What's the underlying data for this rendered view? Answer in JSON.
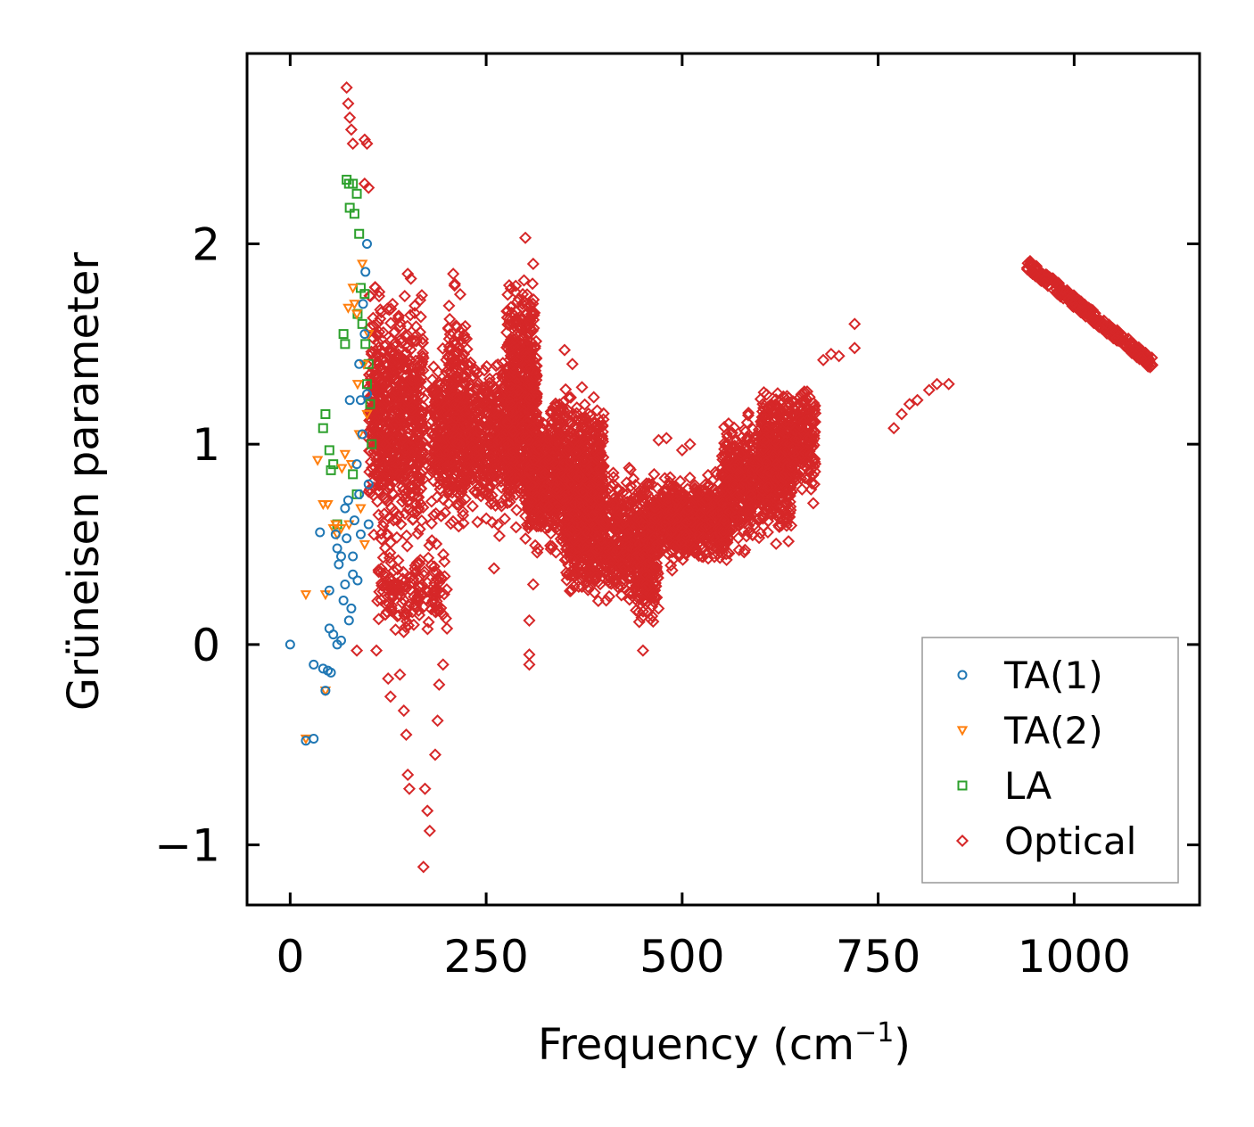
{
  "chart_data": {
    "type": "scatter",
    "title": "",
    "xlabel_main": "Frequency (cm",
    "xlabel_sup": "−1",
    "xlabel_end": ")",
    "ylabel": "Grüneisen parameter",
    "xlim": [
      -55,
      1160
    ],
    "ylim": [
      -1.3,
      2.95
    ],
    "xticks": [
      0,
      250,
      500,
      750,
      1000
    ],
    "xtick_labels": [
      "0",
      "250",
      "500",
      "750",
      "1000"
    ],
    "yticks": [
      -1,
      0,
      1,
      2
    ],
    "ytick_labels": [
      "−1",
      "0",
      "1",
      "2"
    ],
    "legend_position": "lower-right",
    "series": [
      {
        "name": "TA(1)",
        "marker": "circle",
        "color": "#1f77b4",
        "points": [
          [
            0,
            0
          ],
          [
            20,
            -0.48
          ],
          [
            30,
            -0.47
          ],
          [
            30,
            -0.1
          ],
          [
            42,
            -0.12
          ],
          [
            45,
            -0.23
          ],
          [
            48,
            -0.13
          ],
          [
            52,
            -0.14
          ],
          [
            38,
            0.56
          ],
          [
            50,
            0.27
          ],
          [
            50,
            0.08
          ],
          [
            55,
            0.05
          ],
          [
            58,
            0.55
          ],
          [
            60,
            0.48
          ],
          [
            60,
            0.0
          ],
          [
            62,
            0.4
          ],
          [
            65,
            0.02
          ],
          [
            65,
            0.44
          ],
          [
            68,
            0.22
          ],
          [
            70,
            0.68
          ],
          [
            70,
            0.3
          ],
          [
            72,
            0.53
          ],
          [
            74,
            0.72
          ],
          [
            75,
            0.12
          ],
          [
            78,
            0.18
          ],
          [
            80,
            0.35
          ],
          [
            80,
            0.44
          ],
          [
            82,
            0.62
          ],
          [
            85,
            0.9
          ],
          [
            86,
            0.32
          ],
          [
            88,
            0.75
          ],
          [
            90,
            0.55
          ],
          [
            90,
            1.22
          ],
          [
            92,
            1.05
          ],
          [
            95,
            1.55
          ],
          [
            96,
            1.86
          ],
          [
            98,
            2.0
          ],
          [
            98,
            1.25
          ],
          [
            100,
            0.8
          ],
          [
            100,
            0.6
          ],
          [
            76,
            1.22
          ],
          [
            88,
            1.4
          ],
          [
            93,
            1.7
          ]
        ]
      },
      {
        "name": "TA(2)",
        "marker": "triangle",
        "color": "#ff7f0e",
        "points": [
          [
            20,
            0.25
          ],
          [
            20,
            -0.47
          ],
          [
            35,
            0.92
          ],
          [
            42,
            0.7
          ],
          [
            45,
            0.25
          ],
          [
            45,
            -0.23
          ],
          [
            48,
            0.7
          ],
          [
            55,
            0.58
          ],
          [
            58,
            0.6
          ],
          [
            60,
            0.55
          ],
          [
            65,
            0.58
          ],
          [
            70,
            0.95
          ],
          [
            75,
            0.6
          ],
          [
            78,
            0.9
          ],
          [
            80,
            1.78
          ],
          [
            82,
            1.7
          ],
          [
            85,
            1.65
          ],
          [
            86,
            1.3
          ],
          [
            88,
            1.05
          ],
          [
            90,
            0.68
          ],
          [
            92,
            1.9
          ],
          [
            94,
            1.4
          ],
          [
            95,
            0.5
          ],
          [
            98,
            1.15
          ],
          [
            100,
            1.55
          ],
          [
            74,
            1.68
          ],
          [
            66,
            0.88
          ]
        ]
      },
      {
        "name": "LA",
        "marker": "square",
        "color": "#2ca02c",
        "points": [
          [
            42,
            1.08
          ],
          [
            45,
            1.15
          ],
          [
            50,
            0.97
          ],
          [
            52,
            0.87
          ],
          [
            55,
            0.9
          ],
          [
            60,
            0.6
          ],
          [
            68,
            1.55
          ],
          [
            70,
            1.5
          ],
          [
            72,
            2.32
          ],
          [
            75,
            2.3
          ],
          [
            76,
            2.18
          ],
          [
            80,
            2.3
          ],
          [
            82,
            2.15
          ],
          [
            85,
            2.25
          ],
          [
            86,
            1.65
          ],
          [
            88,
            2.05
          ],
          [
            90,
            1.78
          ],
          [
            92,
            1.6
          ],
          [
            95,
            1.75
          ],
          [
            96,
            1.5
          ],
          [
            98,
            1.3
          ],
          [
            100,
            1.4
          ],
          [
            102,
            1.2
          ],
          [
            104,
            1.0
          ],
          [
            80,
            0.85
          ],
          [
            85,
            0.75
          ]
        ]
      },
      {
        "name": "Optical",
        "marker": "diamond",
        "color": "#d62728",
        "points": [
          [
            72,
            2.78
          ],
          [
            74,
            2.7
          ],
          [
            76,
            2.63
          ],
          [
            78,
            2.57
          ],
          [
            80,
            2.5
          ],
          [
            95,
            2.52
          ],
          [
            98,
            2.5
          ],
          [
            95,
            2.3
          ],
          [
            100,
            2.28
          ],
          [
            85,
            -0.03
          ],
          [
            110,
            -0.03
          ],
          [
            125,
            -0.17
          ],
          [
            128,
            -0.26
          ],
          [
            140,
            -0.15
          ],
          [
            145,
            -0.33
          ],
          [
            148,
            -0.45
          ],
          [
            150,
            -0.65
          ],
          [
            152,
            -0.72
          ],
          [
            172,
            -0.72
          ],
          [
            175,
            -0.83
          ],
          [
            178,
            -0.93
          ],
          [
            170,
            -1.11
          ],
          [
            185,
            -0.55
          ],
          [
            188,
            -0.38
          ],
          [
            190,
            -0.2
          ],
          [
            195,
            -0.1
          ],
          [
            195,
            0.15
          ],
          [
            200,
            0.08
          ],
          [
            305,
            -0.05
          ],
          [
            305,
            -0.1
          ],
          [
            305,
            0.12
          ],
          [
            310,
            0.3
          ],
          [
            260,
            0.38
          ],
          [
            450,
            -0.03
          ],
          [
            720,
            1.6
          ],
          [
            720,
            1.48
          ],
          [
            680,
            1.42
          ],
          [
            690,
            1.45
          ],
          [
            700,
            1.44
          ],
          [
            770,
            1.08
          ],
          [
            780,
            1.15
          ],
          [
            790,
            1.2
          ],
          [
            800,
            1.22
          ],
          [
            815,
            1.27
          ],
          [
            825,
            1.3
          ],
          [
            840,
            1.3
          ],
          [
            208,
            1.85
          ],
          [
            210,
            1.8
          ],
          [
            300,
            2.03
          ],
          [
            310,
            1.9
          ],
          [
            150,
            1.85
          ],
          [
            350,
            1.47
          ],
          [
            360,
            1.4
          ],
          [
            470,
            1.02
          ],
          [
            480,
            1.03
          ],
          [
            500,
            0.97
          ],
          [
            510,
            1.0
          ]
        ]
      }
    ],
    "optical_dense": {
      "clusters": [
        {
          "x": [
            100,
            170
          ],
          "y": [
            0.35,
            1.9
          ],
          "n": 700
        },
        {
          "x": [
            110,
            200
          ],
          "y": [
            0.0,
            0.6
          ],
          "n": 150
        },
        {
          "x": [
            180,
            290
          ],
          "y": [
            0.5,
            1.55
          ],
          "n": 800
        },
        {
          "x": [
            200,
            225
          ],
          "y": [
            0.6,
            1.85
          ],
          "n": 150
        },
        {
          "x": [
            275,
            315
          ],
          "y": [
            0.5,
            2.0
          ],
          "n": 500
        },
        {
          "x": [
            300,
            400
          ],
          "y": [
            0.35,
            1.35
          ],
          "n": 900
        },
        {
          "x": [
            350,
            460
          ],
          "y": [
            0.15,
            0.95
          ],
          "n": 700
        },
        {
          "x": [
            440,
            470
          ],
          "y": [
            0.0,
            0.75
          ],
          "n": 150
        },
        {
          "x": [
            460,
            560
          ],
          "y": [
            0.35,
            0.9
          ],
          "n": 700
        },
        {
          "x": [
            550,
            640
          ],
          "y": [
            0.4,
            1.2
          ],
          "n": 600
        },
        {
          "x": [
            600,
            670
          ],
          "y": [
            0.65,
            1.38
          ],
          "n": 400
        }
      ],
      "lines": [
        {
          "x": [
            940,
            1100
          ],
          "y": [
            1.9,
            1.4
          ],
          "n": 320
        }
      ]
    }
  }
}
